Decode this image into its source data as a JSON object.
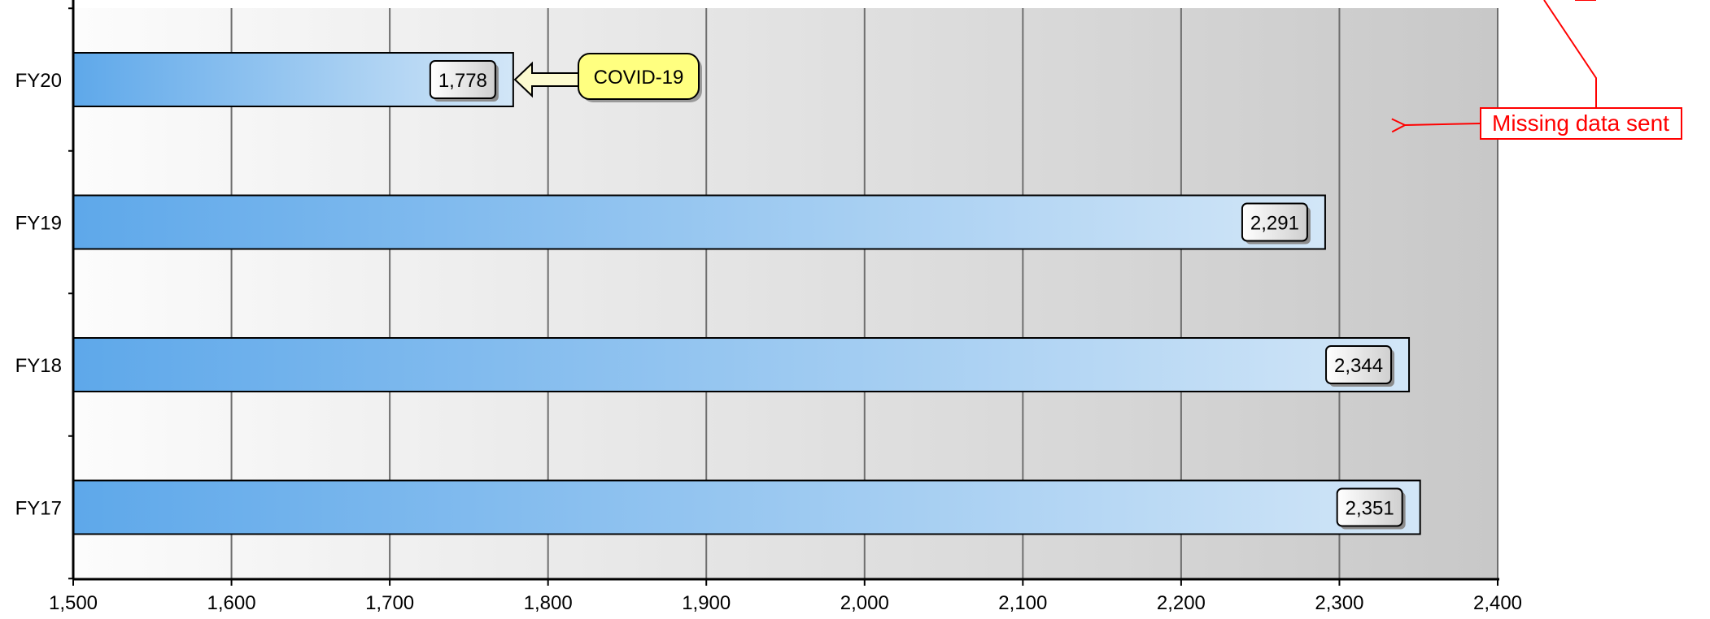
{
  "chart_data": {
    "type": "bar",
    "orientation": "horizontal",
    "categories": [
      "FY20",
      "FY19",
      "FY18",
      "FY17"
    ],
    "values": [
      1778,
      2291,
      2344,
      2351
    ],
    "value_labels": [
      "1,778",
      "2,291",
      "2,344",
      "2,351"
    ],
    "title": "",
    "xlabel": "",
    "ylabel": "",
    "xlim": [
      1500,
      2400
    ],
    "x_ticks": [
      1500,
      1600,
      1700,
      1800,
      1900,
      2000,
      2100,
      2200,
      2300,
      2400
    ],
    "x_tick_labels": [
      "1,500",
      "1,600",
      "1,700",
      "1,800",
      "1,900",
      "2,000",
      "2,100",
      "2,200",
      "2,300",
      "2,400"
    ],
    "grid": "vertical",
    "background": "horizontal gradient white to gray",
    "bar_color_start": "#5ea8ea",
    "bar_color_end": "#d2e6f7",
    "annotations": [
      {
        "text": "COVID-19",
        "points_to": "FY20",
        "style": "yellow callout with arrow",
        "color": "#ffff80"
      },
      {
        "text": "Missing data sent",
        "style": "red outlined box with arrow",
        "color": "#ff0000"
      }
    ]
  }
}
